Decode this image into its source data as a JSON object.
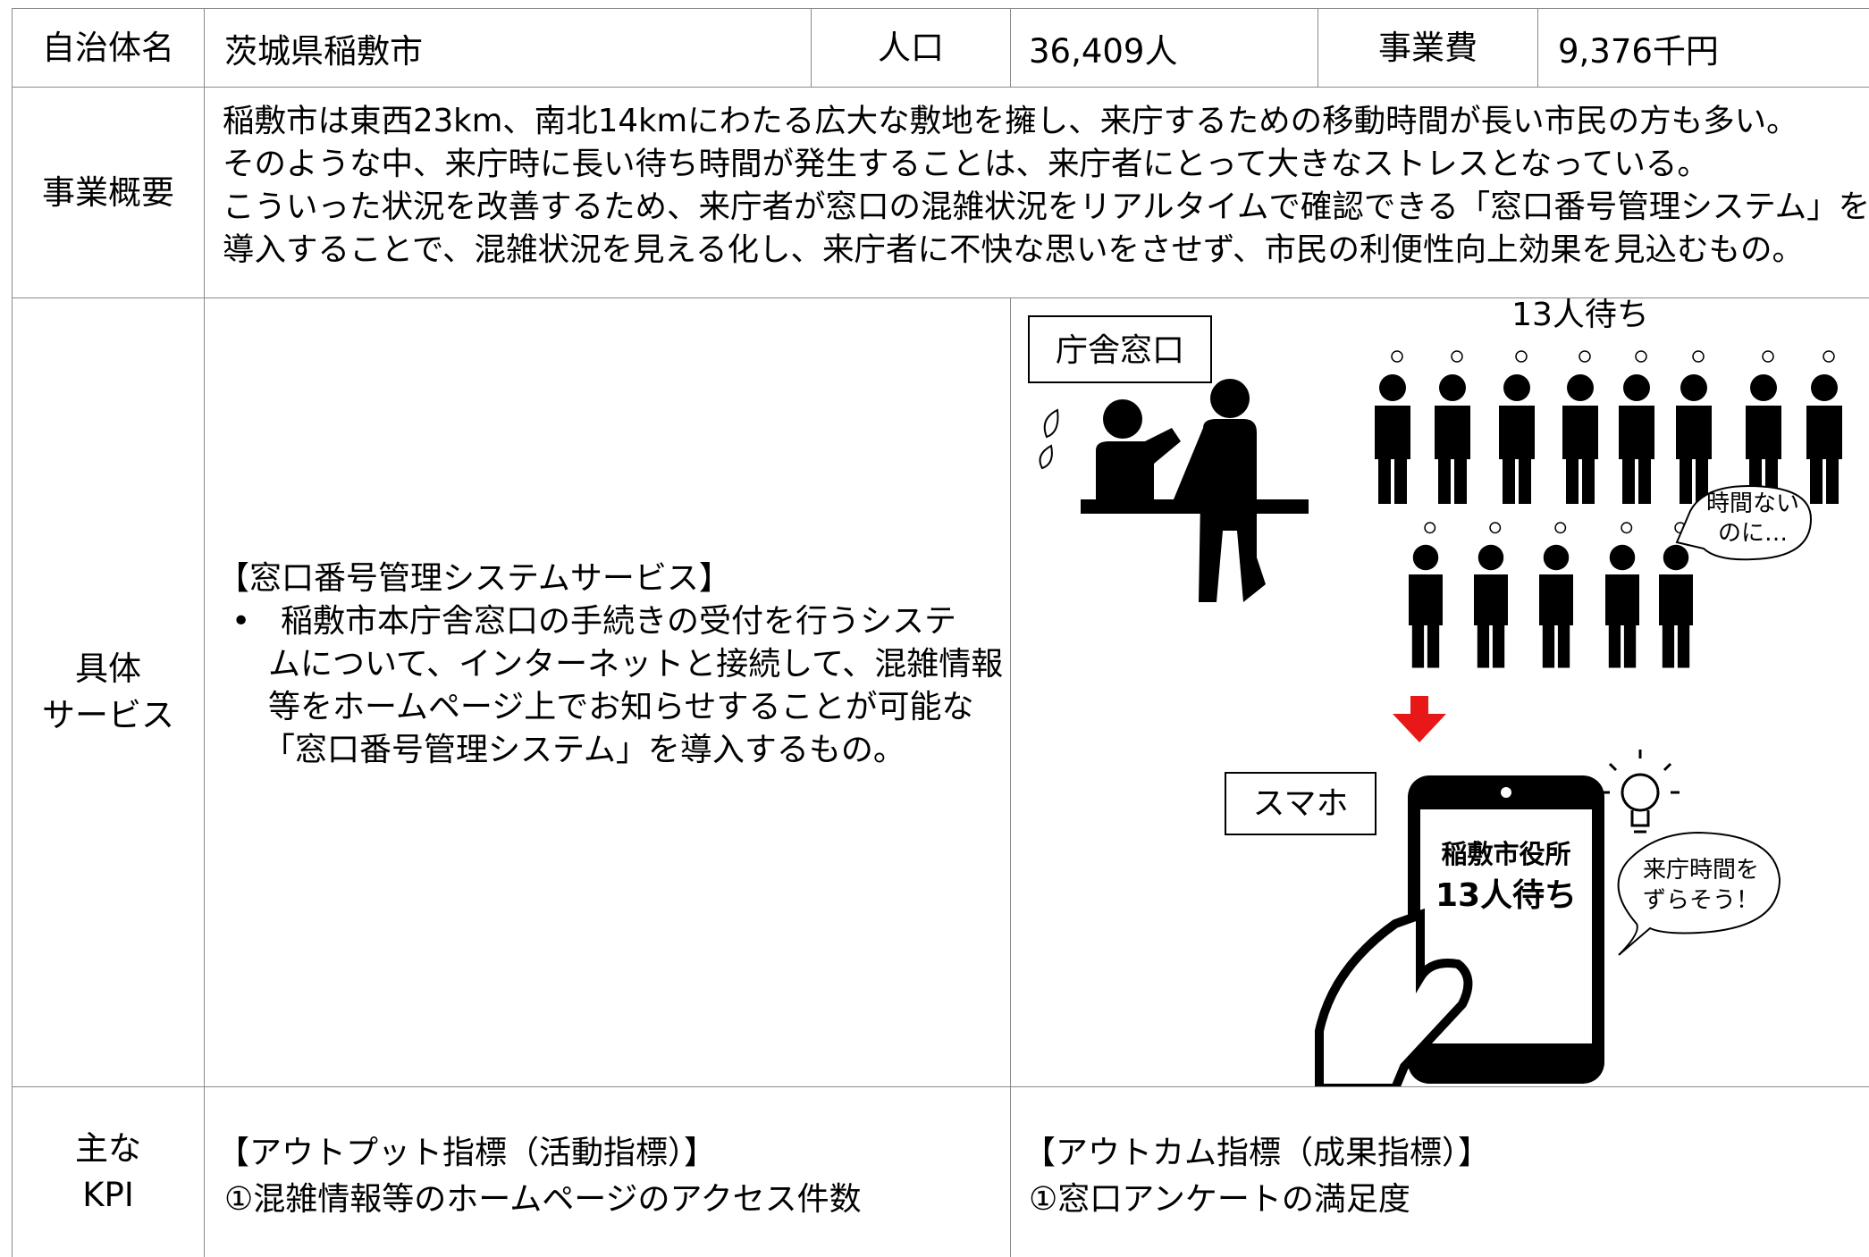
{
  "header": {
    "municipality_label": "自治体名",
    "municipality": "茨城県稲敷市",
    "population_label": "人口",
    "population": "36,409人",
    "cost_label": "事業費",
    "cost": "9,376千円"
  },
  "overview": {
    "label": "事業概要",
    "lines": [
      "稲敷市は東西23km、南北14kmにわたる広大な敷地を擁し、来庁するための移動時間が長い市民の方も多い。",
      "そのような中、来庁時に長い待ち時間が発生することは、来庁者にとって大きなストレスとなっている。",
      "こういった状況を改善するため、来庁者が窓口の混雑状況をリアルタイムで確認できる「窓口番号管理システム」を",
      "導入することで、混雑状況を見える化し、来庁者に不快な思いをさせず、市民の利便性向上効果を見込むもの。"
    ]
  },
  "service": {
    "label_lines": [
      "具体",
      "サービス"
    ],
    "title": "【窓口番号管理システムサービス】",
    "bullet": "•",
    "lines": [
      "稲敷市本庁舎窓口の手続きの受付を行うシステ",
      "ムについて、インターネットと接続して、混雑情報",
      "等をホームページ上でお知らせすることが可能な",
      "「窓口番号管理システム」を導入するもの。"
    ]
  },
  "illustration": {
    "counter_label": "庁舎窓口",
    "queue_label": "13人待ち",
    "bubble1_lines": [
      "時間ない",
      "のに…"
    ],
    "smartphone_label": "スマホ",
    "screen_lines": [
      "稲敷市役所",
      "13人待ち"
    ],
    "bubble2_lines": [
      "来庁時間を",
      "ずらそう！"
    ]
  },
  "kpi": {
    "label_lines": [
      "主な",
      "KPI"
    ],
    "output_title": "【アウトプット指標（活動指標）】",
    "output_item": "①混雑情報等のホームページのアクセス件数",
    "outcome_title": "【アウトカム指標（成果指標）】",
    "outcome_item": "①窓口アンケートの満足度"
  }
}
